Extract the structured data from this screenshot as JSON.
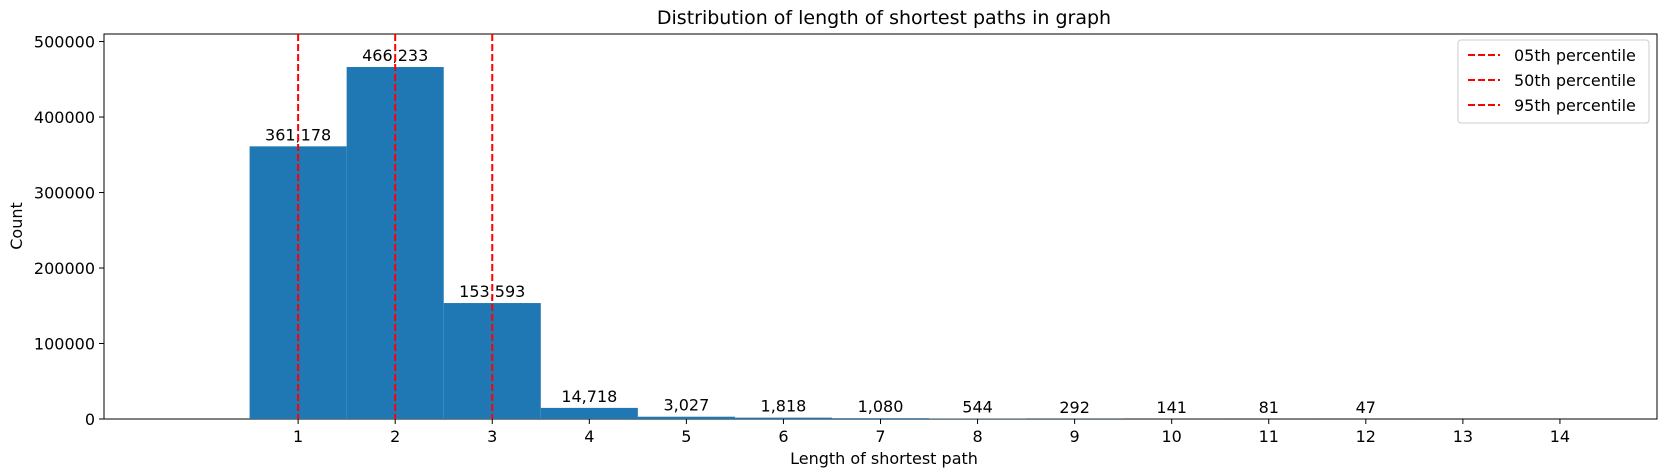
{
  "chart_data": {
    "type": "bar",
    "title": "Distribution of length of shortest paths in graph",
    "xlabel": "Length of shortest path",
    "ylabel": "Count",
    "categories": [
      1,
      2,
      3,
      4,
      5,
      6,
      7,
      8,
      9,
      10,
      11,
      12,
      13,
      14
    ],
    "values": [
      361178,
      466233,
      153593,
      14718,
      3027,
      1818,
      1080,
      544,
      292,
      141,
      81,
      47,
      0,
      0
    ],
    "data_labels": [
      "361,178",
      "466,233",
      "153,593",
      "14,718",
      "3,027",
      "1,818",
      "1,080",
      "544",
      "292",
      "141",
      "81",
      "47",
      "",
      ""
    ],
    "xlim": [
      -1,
      15
    ],
    "ylim": [
      0,
      510000
    ],
    "yticks": [
      0,
      100000,
      200000,
      300000,
      400000,
      500000
    ],
    "ytick_labels": [
      "0",
      "100000",
      "200000",
      "300000",
      "400000",
      "500000"
    ],
    "xticks": [
      1,
      2,
      3,
      4,
      5,
      6,
      7,
      8,
      9,
      10,
      11,
      12,
      13,
      14
    ],
    "xtick_labels": [
      "1",
      "2",
      "3",
      "4",
      "5",
      "6",
      "7",
      "8",
      "9",
      "10",
      "11",
      "12",
      "13",
      "14"
    ],
    "bar_color": "#1f77b4",
    "vlines": [
      {
        "name": "05th percentile",
        "x": 1,
        "color": "#ff0000",
        "style": "dashed"
      },
      {
        "name": "50th percentile",
        "x": 2,
        "color": "#ff0000",
        "style": "dashed"
      },
      {
        "name": "95th percentile",
        "x": 3,
        "color": "#ff0000",
        "style": "dashed"
      }
    ],
    "legend_position": "top-right",
    "grid": false
  }
}
